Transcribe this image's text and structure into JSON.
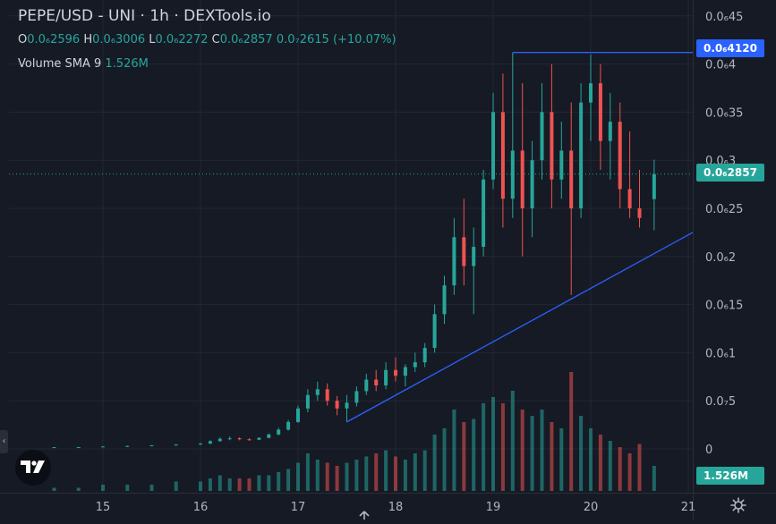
{
  "symbol_title": "PEPE/USD - UNI · 1h · DEXTools.io",
  "ohlc": {
    "o_label": "O",
    "o_value": "0.0₆2596",
    "h_label": "H",
    "h_value": "0.0₆3006",
    "l_label": "L",
    "l_value": "0.0₆2272",
    "c_label": "C",
    "c_value": "0.0₆2857",
    "change": "0.0₇2615 (+10.07%)"
  },
  "volume_legend": {
    "label": "Volume SMA 9",
    "value": "1.526M"
  },
  "price_tags": {
    "high_line": "0.0₆4120",
    "last_price": "0.0₆2857",
    "volume": "1.526M"
  },
  "colors": {
    "background": "#161a25",
    "up": "#26a69a",
    "down": "#ef5350",
    "trendline": "#2962ff",
    "last_price": "#26a69a",
    "high_line_tag": "#2962ff"
  },
  "chart_data": {
    "type": "candlestick",
    "title": "PEPE/USD - UNI · 1h · DEXTools.io",
    "xlabel": "",
    "ylabel": "",
    "x_ticks": [
      "15",
      "16",
      "17",
      "18",
      "19",
      "20",
      "21"
    ],
    "y_ticks": [
      "0",
      "0.0₇5",
      "0.0₆1",
      "0.0₆15",
      "0.0₆2",
      "0.0₆25",
      "0.0₆3",
      "0.0₆35",
      "0.0₆4",
      "0.0₆45"
    ],
    "y_tick_values": [
      0,
      0.05,
      0.1,
      0.15,
      0.2,
      0.25,
      0.3,
      0.35,
      0.4,
      0.45
    ],
    "y_unit_note": "values in millionths (×1e-6 USD)",
    "x_range": [
      14.5,
      21.0
    ],
    "y_range": [
      0,
      0.46
    ],
    "grid": true,
    "legend_placement": "top-left",
    "drawn_lines": {
      "horizontal_high": {
        "value": 0.412,
        "x_start": 19.2,
        "x_end": 21.0
      },
      "trendline": {
        "from": [
          17.5,
          0.028
        ],
        "to": [
          21.0,
          0.225
        ]
      }
    },
    "volume_ymax": 4.0,
    "candles": [
      [
        14.5,
        0.0018,
        0.0019,
        0.0016,
        0.0018,
        0.1
      ],
      [
        14.75,
        0.0018,
        0.002,
        0.0017,
        0.0019,
        0.1
      ],
      [
        15.0,
        0.0019,
        0.0028,
        0.0018,
        0.0025,
        0.2
      ],
      [
        15.25,
        0.0025,
        0.0035,
        0.0022,
        0.003,
        0.2
      ],
      [
        15.5,
        0.003,
        0.004,
        0.0028,
        0.0036,
        0.2
      ],
      [
        15.75,
        0.0036,
        0.005,
        0.0034,
        0.0045,
        0.3
      ],
      [
        16.0,
        0.0045,
        0.006,
        0.004,
        0.0055,
        0.3
      ],
      [
        16.1,
        0.0055,
        0.009,
        0.005,
        0.008,
        0.4
      ],
      [
        16.2,
        0.008,
        0.012,
        0.0075,
        0.0105,
        0.5
      ],
      [
        16.3,
        0.0105,
        0.013,
        0.009,
        0.011,
        0.4
      ],
      [
        16.4,
        0.011,
        0.012,
        0.009,
        0.01,
        0.4
      ],
      [
        16.5,
        0.01,
        0.011,
        0.0085,
        0.0095,
        0.4
      ],
      [
        16.6,
        0.0095,
        0.012,
        0.009,
        0.0115,
        0.5
      ],
      [
        16.7,
        0.0115,
        0.016,
        0.011,
        0.015,
        0.5
      ],
      [
        16.8,
        0.015,
        0.022,
        0.014,
        0.02,
        0.6
      ],
      [
        16.9,
        0.02,
        0.03,
        0.019,
        0.028,
        0.7
      ],
      [
        17.0,
        0.028,
        0.045,
        0.027,
        0.042,
        0.9
      ],
      [
        17.1,
        0.042,
        0.062,
        0.038,
        0.056,
        1.2
      ],
      [
        17.2,
        0.056,
        0.07,
        0.05,
        0.062,
        1.0
      ],
      [
        17.3,
        0.062,
        0.068,
        0.045,
        0.05,
        0.9
      ],
      [
        17.4,
        0.05,
        0.055,
        0.035,
        0.042,
        0.8
      ],
      [
        17.5,
        0.042,
        0.056,
        0.028,
        0.048,
        0.9
      ],
      [
        17.6,
        0.048,
        0.065,
        0.044,
        0.06,
        1.0
      ],
      [
        17.7,
        0.06,
        0.078,
        0.056,
        0.072,
        1.1
      ],
      [
        17.8,
        0.072,
        0.082,
        0.06,
        0.066,
        1.2
      ],
      [
        17.9,
        0.066,
        0.09,
        0.062,
        0.082,
        1.3
      ],
      [
        18.0,
        0.082,
        0.095,
        0.07,
        0.076,
        1.1
      ],
      [
        18.1,
        0.076,
        0.088,
        0.065,
        0.085,
        1.0
      ],
      [
        18.2,
        0.085,
        0.1,
        0.08,
        0.09,
        1.2
      ],
      [
        18.3,
        0.09,
        0.11,
        0.085,
        0.105,
        1.3
      ],
      [
        18.4,
        0.105,
        0.15,
        0.1,
        0.14,
        1.8
      ],
      [
        18.5,
        0.14,
        0.18,
        0.13,
        0.17,
        2.0
      ],
      [
        18.6,
        0.17,
        0.24,
        0.16,
        0.22,
        2.6
      ],
      [
        18.7,
        0.22,
        0.26,
        0.17,
        0.19,
        2.2
      ],
      [
        18.8,
        0.19,
        0.23,
        0.14,
        0.21,
        2.3
      ],
      [
        18.9,
        0.21,
        0.29,
        0.2,
        0.28,
        2.8
      ],
      [
        19.0,
        0.28,
        0.37,
        0.27,
        0.35,
        3.0
      ],
      [
        19.1,
        0.35,
        0.39,
        0.23,
        0.26,
        2.8
      ],
      [
        19.2,
        0.26,
        0.412,
        0.24,
        0.31,
        3.2
      ],
      [
        19.3,
        0.31,
        0.38,
        0.2,
        0.25,
        2.6
      ],
      [
        19.4,
        0.25,
        0.32,
        0.22,
        0.3,
        2.4
      ],
      [
        19.5,
        0.3,
        0.38,
        0.28,
        0.35,
        2.6
      ],
      [
        19.6,
        0.35,
        0.4,
        0.25,
        0.28,
        2.2
      ],
      [
        19.7,
        0.28,
        0.34,
        0.26,
        0.31,
        2.0
      ],
      [
        19.8,
        0.31,
        0.36,
        0.16,
        0.25,
        3.8
      ],
      [
        19.9,
        0.25,
        0.38,
        0.24,
        0.36,
        2.4
      ],
      [
        20.0,
        0.36,
        0.41,
        0.32,
        0.38,
        2.0
      ],
      [
        20.1,
        0.38,
        0.4,
        0.29,
        0.32,
        1.8
      ],
      [
        20.2,
        0.32,
        0.37,
        0.28,
        0.34,
        1.6
      ],
      [
        20.3,
        0.34,
        0.36,
        0.25,
        0.27,
        1.4
      ],
      [
        20.4,
        0.27,
        0.33,
        0.24,
        0.25,
        1.2
      ],
      [
        20.5,
        0.25,
        0.29,
        0.23,
        0.24,
        1.5
      ],
      [
        20.65,
        0.2596,
        0.3006,
        0.2272,
        0.2857,
        0.8
      ]
    ]
  }
}
